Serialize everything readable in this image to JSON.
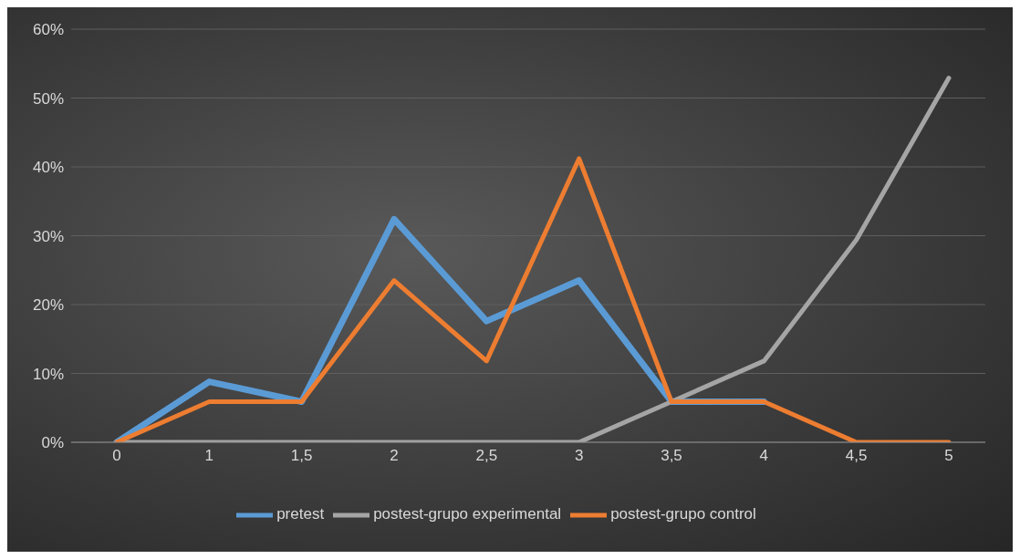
{
  "chart_data": {
    "type": "line",
    "categories": [
      "0",
      "1",
      "1,5",
      "2",
      "2,5",
      "3",
      "3,5",
      "4",
      "4,5",
      "5"
    ],
    "series": [
      {
        "name": "pretest",
        "color": "#5b9bd5",
        "values": [
          0,
          8.8,
          5.9,
          32.4,
          17.6,
          23.5,
          5.9,
          5.9,
          null,
          null
        ]
      },
      {
        "name": "postest-grupo experimental",
        "color": "#a5a5a5",
        "values": [
          0,
          0,
          0,
          0,
          0,
          0,
          5.9,
          11.8,
          29.4,
          52.9
        ]
      },
      {
        "name": "postest-grupo control",
        "color": "#ed7d31",
        "values": [
          0,
          5.9,
          5.9,
          23.5,
          11.8,
          41.2,
          5.9,
          5.9,
          0,
          0
        ]
      }
    ],
    "ylim": [
      0,
      60
    ],
    "yticks": [
      {
        "value": 0,
        "label": "0%"
      },
      {
        "value": 10,
        "label": "10%"
      },
      {
        "value": 20,
        "label": "20%"
      },
      {
        "value": 30,
        "label": "30%"
      },
      {
        "value": 40,
        "label": "40%"
      },
      {
        "value": 50,
        "label": "50%"
      },
      {
        "value": 60,
        "label": "60%"
      }
    ],
    "grid": "y",
    "legend": "bottom",
    "marker": "none",
    "line_style": "solid"
  }
}
